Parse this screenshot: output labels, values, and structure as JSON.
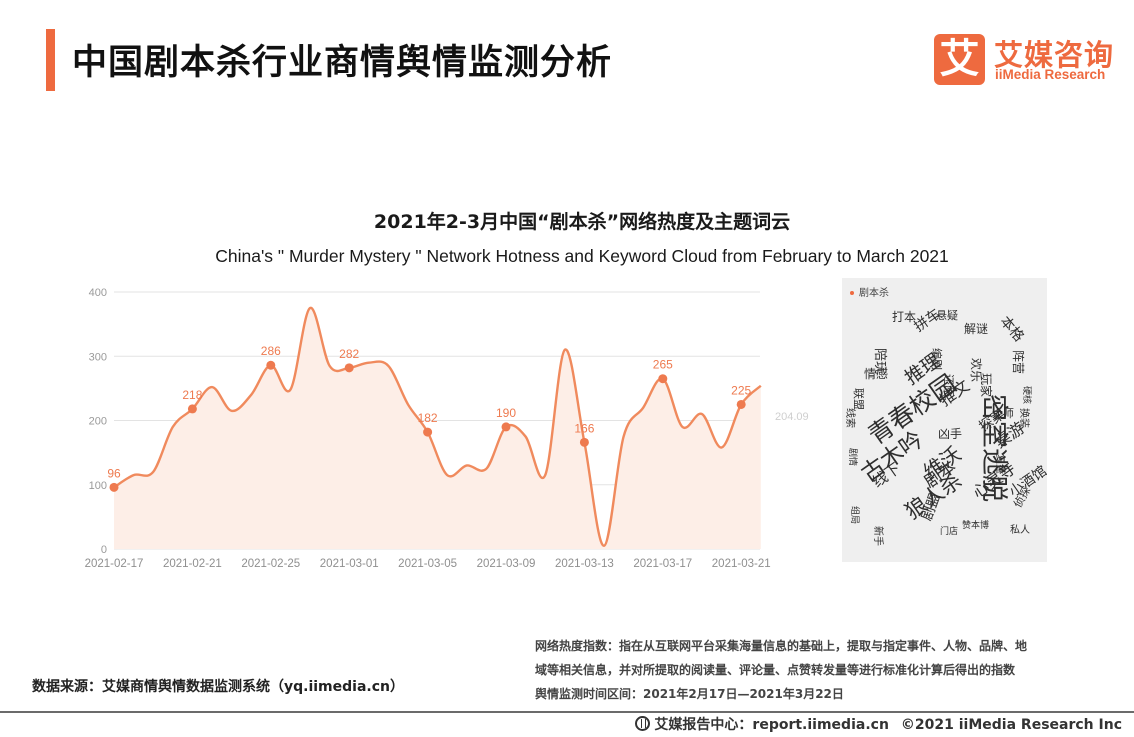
{
  "header": {
    "title": "中国剧本杀行业商情舆情监测分析",
    "brand_mark": "艾",
    "brand_cn": "艾媒咨询",
    "brand_en": "iiMedia Research"
  },
  "colors": {
    "accent": "#ee6a3f",
    "line": "#f08a5d",
    "area": "#fdeee7",
    "grid": "#e3e3e3",
    "cloud_bg": "#efefef"
  },
  "chart_data": {
    "type": "line",
    "title": "2021年2-3月中国“剧本杀”网络热度及主题词云",
    "subtitle": "China's \" Murder Mystery \" Network Hotness and Keyword Cloud from February to March 2021",
    "ylim": [
      0,
      400
    ],
    "yticks": [
      "0",
      "100",
      "200",
      "300",
      "400"
    ],
    "xtick_labels": [
      "2021-02-17",
      "2021-02-21",
      "2021-02-25",
      "2021-03-01",
      "2021-03-05",
      "2021-03-09",
      "2021-03-13",
      "2021-03-17",
      "2021-03-21"
    ],
    "grid": true,
    "end_label": "204.09",
    "series": [
      {
        "x": [
          "2021-02-17",
          "2021-02-18",
          "2021-02-19",
          "2021-02-20",
          "2021-02-21",
          "2021-02-22",
          "2021-02-23",
          "2021-02-24",
          "2021-02-25",
          "2021-02-26",
          "2021-02-27",
          "2021-02-28",
          "2021-03-01",
          "2021-03-02",
          "2021-03-03",
          "2021-03-04",
          "2021-03-05",
          "2021-03-06",
          "2021-03-07",
          "2021-03-08",
          "2021-03-09",
          "2021-03-10",
          "2021-03-11",
          "2021-03-12",
          "2021-03-13",
          "2021-03-14",
          "2021-03-15",
          "2021-03-16",
          "2021-03-17",
          "2021-03-18",
          "2021-03-19",
          "2021-03-20",
          "2021-03-21",
          "2021-03-22"
        ],
        "y": [
          96,
          115,
          120,
          190,
          218,
          252,
          215,
          240,
          286,
          248,
          375,
          285,
          282,
          290,
          285,
          225,
          182,
          115,
          130,
          125,
          190,
          175,
          115,
          310,
          166,
          5,
          175,
          220,
          265,
          190,
          210,
          158,
          225,
          254
        ],
        "labeled_points": [
          {
            "x": "2021-02-17",
            "y": 96,
            "label": "96"
          },
          {
            "x": "2021-02-21",
            "y": 218,
            "label": "218"
          },
          {
            "x": "2021-02-25",
            "y": 286,
            "label": "286"
          },
          {
            "x": "2021-03-01",
            "y": 282,
            "label": "282"
          },
          {
            "x": "2021-03-05",
            "y": 182,
            "label": "182"
          },
          {
            "x": "2021-03-09",
            "y": 190,
            "label": "190"
          },
          {
            "x": "2021-03-13",
            "y": 166,
            "label": "166"
          },
          {
            "x": "2021-03-17",
            "y": 265,
            "label": "265"
          },
          {
            "x": "2021-03-21",
            "y": 225,
            "label": "225"
          }
        ]
      }
    ]
  },
  "word_cloud": {
    "legend": "剧本杀",
    "words": [
      "密室逃脱",
      "青春校园",
      "古木吟",
      "狼人杀",
      "维沃",
      "推理",
      "推文",
      "桌游",
      "探案",
      "剧本",
      "线下",
      "心灵寺",
      "小酒馆",
      "拼车",
      "打本",
      "悬疑",
      "解谜",
      "本格",
      "陪玩",
      "阵营",
      "私人",
      "侦探",
      "赞本博",
      "剧盟",
      "情感",
      "联盟",
      "线索",
      "剧情",
      "组局",
      "复盘",
      "还原",
      "玩家",
      "换装",
      "门店",
      "欢乐",
      "新手",
      "硬核",
      "凶手",
      "大师",
      "编剧"
    ]
  },
  "notes": {
    "line1": "网络热度指数：指在从互联网平台采集海量信息的基础上，提取与指定事件、人物、品牌、地",
    "line2": "域等相关信息，并对所提取的阅读量、评论量、点赞转发量等进行标准化计算后得出的指数",
    "line3": "舆情监测时间区间：2021年2月17日—2021年3月22日"
  },
  "source": "数据来源：艾媒商情舆情数据监测系统（yq.iimedia.cn）",
  "footer": {
    "report_center": "艾媒报告中心：report.iimedia.cn",
    "copyright": "©2021  iiMedia Research  Inc"
  }
}
